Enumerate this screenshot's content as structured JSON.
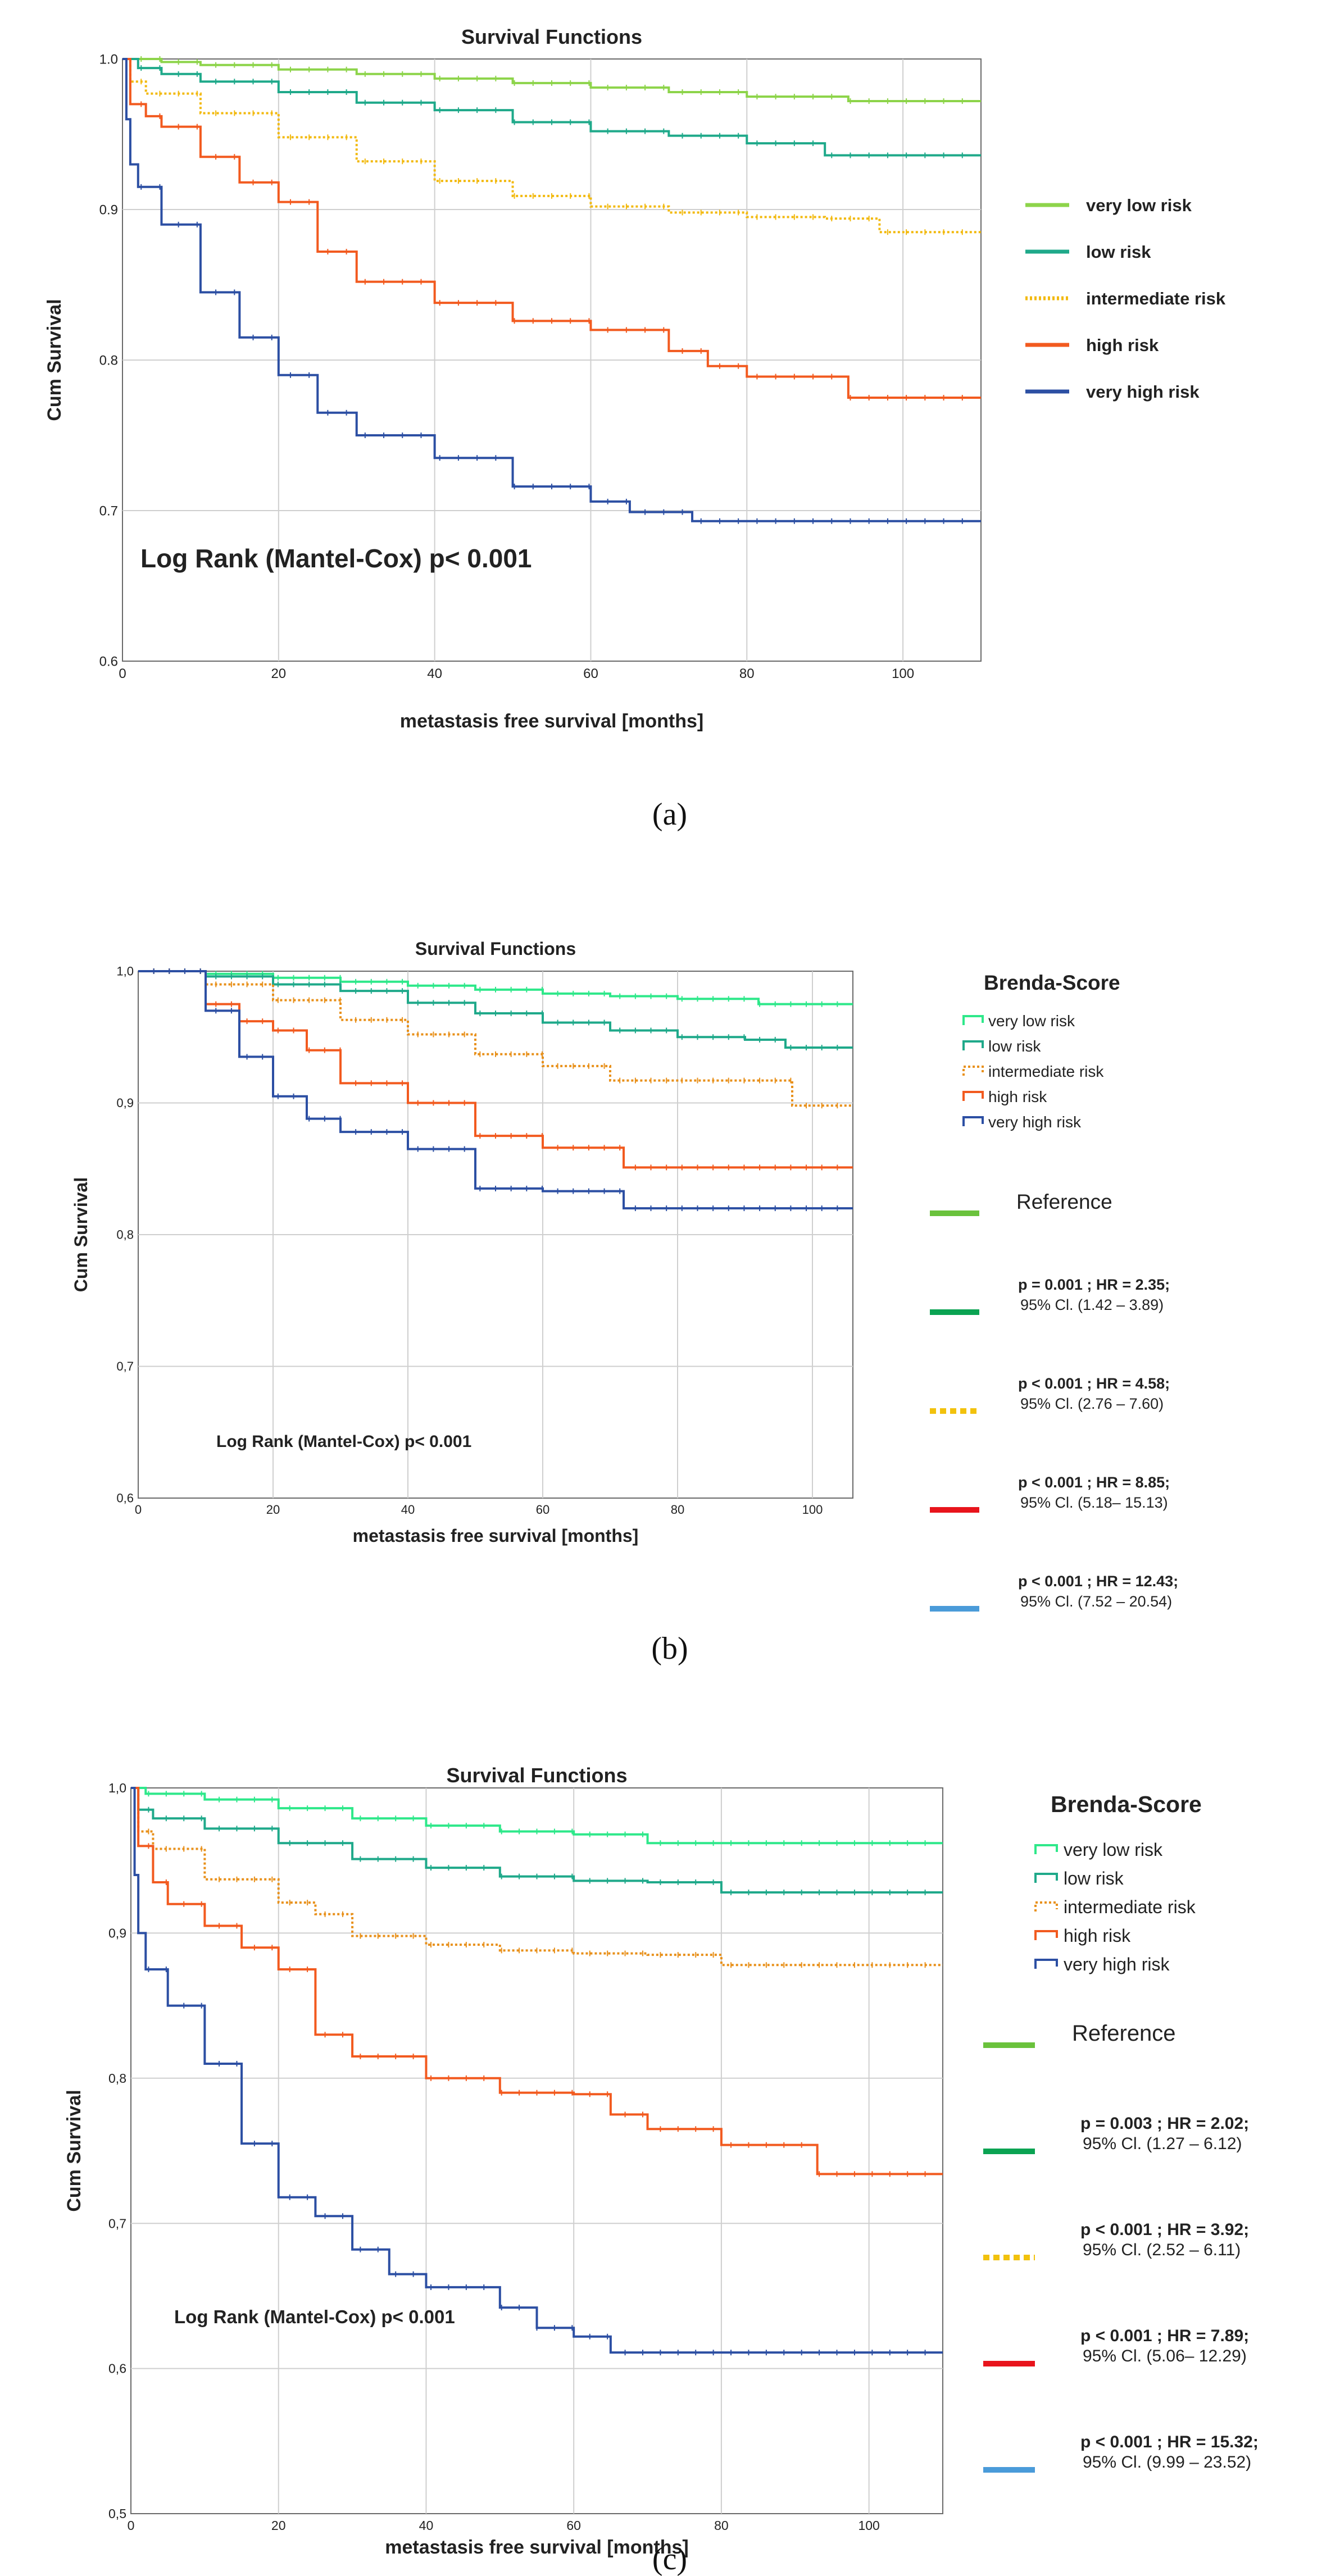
{
  "charts": [
    {
      "id": "a",
      "panel_label": "(a)",
      "title": "Survival Functions",
      "xlabel": "metastasis free survival [months]",
      "ylabel": "Cum Survival",
      "annotation": "Log Rank (Mantel-Cox) p< 0.001",
      "xticks": [
        "0",
        "20",
        "40",
        "60",
        "80",
        "100"
      ],
      "yticks": [
        "0.6",
        "0.7",
        "0.8",
        "0.9",
        "1.0"
      ],
      "legend_title": "",
      "reference_label": ""
    },
    {
      "id": "b",
      "panel_label": "(b)",
      "title": "Survival Functions",
      "xlabel": "metastasis free survival [months]",
      "ylabel": "Cum Survival",
      "annotation": "Log Rank (Mantel-Cox) p< 0.001",
      "xticks": [
        "0",
        "20",
        "40",
        "60",
        "80",
        "100"
      ],
      "yticks": [
        "0,6",
        "0,7",
        "0,8",
        "0,9",
        "1,0"
      ],
      "legend_title": "Brenda-Score",
      "reference_label": "Reference"
    },
    {
      "id": "c",
      "panel_label": "(c)",
      "title": "Survival Functions",
      "xlabel": "metastasis free survival [months]",
      "ylabel": "Cum Survival",
      "annotation": "Log Rank (Mantel-Cox) p< 0.001",
      "xticks": [
        "0",
        "20",
        "40",
        "60",
        "80",
        "100"
      ],
      "yticks": [
        "0,5",
        "0,6",
        "0,7",
        "0,8",
        "0,9",
        "1,0"
      ],
      "legend_title": "Brenda-Score",
      "reference_label": "Reference"
    }
  ],
  "chart_data": [
    {
      "type": "line",
      "title": "Survival Functions",
      "xlabel": "metastasis free survival [months]",
      "ylabel": "Cum Survival",
      "xlim": [
        0,
        110
      ],
      "ylim": [
        0.6,
        1.0
      ],
      "grid": true,
      "legend": "right",
      "series": [
        {
          "name": "very low risk",
          "color": "#8dd44a",
          "style": "solid",
          "x": [
            0,
            5,
            10,
            20,
            30,
            40,
            50,
            60,
            70,
            80,
            93,
            100,
            110
          ],
          "y": [
            1.0,
            0.998,
            0.996,
            0.993,
            0.99,
            0.987,
            0.984,
            0.981,
            0.978,
            0.975,
            0.972,
            0.972,
            0.972
          ]
        },
        {
          "name": "low risk",
          "color": "#1fa98a",
          "style": "solid",
          "x": [
            0,
            2,
            5,
            10,
            20,
            30,
            40,
            50,
            60,
            70,
            80,
            90,
            100,
            110
          ],
          "y": [
            1.0,
            0.994,
            0.99,
            0.985,
            0.978,
            0.971,
            0.966,
            0.958,
            0.952,
            0.949,
            0.944,
            0.936,
            0.936,
            0.936
          ]
        },
        {
          "name": "intermediate risk",
          "color": "#f2b90d",
          "style": "dotted",
          "x": [
            0,
            1,
            3,
            10,
            20,
            30,
            40,
            50,
            60,
            70,
            80,
            90,
            97,
            110
          ],
          "y": [
            1.0,
            0.985,
            0.977,
            0.964,
            0.948,
            0.932,
            0.919,
            0.909,
            0.902,
            0.898,
            0.895,
            0.894,
            0.885,
            0.885
          ]
        },
        {
          "name": "high risk",
          "color": "#f25a1f",
          "style": "solid",
          "x": [
            0,
            1,
            3,
            5,
            10,
            15,
            20,
            25,
            30,
            40,
            50,
            60,
            70,
            75,
            80,
            93,
            110
          ],
          "y": [
            1.0,
            0.97,
            0.962,
            0.955,
            0.935,
            0.918,
            0.905,
            0.872,
            0.852,
            0.838,
            0.826,
            0.82,
            0.806,
            0.796,
            0.789,
            0.775,
            0.775
          ]
        },
        {
          "name": "very high risk",
          "color": "#2c4fa3",
          "style": "solid",
          "x": [
            0,
            0.5,
            1,
            2,
            5,
            10,
            15,
            20,
            25,
            30,
            40,
            50,
            60,
            65,
            73,
            110
          ],
          "y": [
            1.0,
            0.96,
            0.93,
            0.915,
            0.89,
            0.845,
            0.815,
            0.79,
            0.765,
            0.75,
            0.735,
            0.716,
            0.706,
            0.699,
            0.693,
            0.693
          ]
        }
      ]
    },
    {
      "type": "line",
      "title": "Survival Functions",
      "xlabel": "metastasis free survival [months]",
      "ylabel": "Cum Survival",
      "xlim": [
        0,
        106
      ],
      "ylim": [
        0.6,
        1.0
      ],
      "grid": true,
      "legend": "right",
      "legend_title": "Brenda-Score",
      "series": [
        {
          "name": "very low risk",
          "color": "#2ee88a",
          "style": "solid",
          "x": [
            0,
            5,
            10,
            20,
            30,
            40,
            50,
            60,
            70,
            80,
            92,
            106
          ],
          "y": [
            1.0,
            1.0,
            0.998,
            0.995,
            0.992,
            0.989,
            0.986,
            0.983,
            0.981,
            0.979,
            0.975,
            0.975
          ]
        },
        {
          "name": "low risk",
          "color": "#1fa98a",
          "style": "solid",
          "x": [
            0,
            5,
            10,
            20,
            30,
            40,
            50,
            60,
            70,
            80,
            90,
            96,
            106
          ],
          "y": [
            1.0,
            1.0,
            0.996,
            0.99,
            0.985,
            0.976,
            0.968,
            0.961,
            0.955,
            0.95,
            0.948,
            0.942,
            0.942
          ]
        },
        {
          "name": "intermediate risk",
          "color": "#e8901a",
          "style": "dotted",
          "x": [
            0,
            5,
            10,
            20,
            30,
            40,
            50,
            60,
            70,
            80,
            97,
            106
          ],
          "y": [
            1.0,
            1.0,
            0.99,
            0.978,
            0.963,
            0.952,
            0.937,
            0.928,
            0.917,
            0.917,
            0.898,
            0.898
          ]
        },
        {
          "name": "high risk",
          "color": "#f25a1f",
          "style": "solid",
          "x": [
            0,
            5,
            10,
            15,
            20,
            25,
            30,
            40,
            50,
            60,
            72,
            106
          ],
          "y": [
            1.0,
            1.0,
            0.975,
            0.962,
            0.955,
            0.94,
            0.915,
            0.9,
            0.875,
            0.866,
            0.851,
            0.851
          ]
        },
        {
          "name": "very high risk",
          "color": "#2c4fa3",
          "style": "solid",
          "x": [
            0,
            5,
            10,
            15,
            20,
            25,
            30,
            40,
            50,
            60,
            72,
            106
          ],
          "y": [
            1.0,
            1.0,
            0.97,
            0.935,
            0.905,
            0.888,
            0.878,
            0.865,
            0.835,
            0.833,
            0.82,
            0.82
          ]
        }
      ],
      "hazard_ratios": [
        {
          "color": "#6ac23c",
          "style": "solid",
          "line1": "Reference",
          "line2": ""
        },
        {
          "color": "#0aa352",
          "style": "solid",
          "line1": "p = 0.001 ; HR = 2.35;",
          "line2": "95% Cl. (1.42 – 3.89)"
        },
        {
          "color": "#f2c20d",
          "style": "dashed",
          "line1": "p < 0.001 ; HR = 4.58;",
          "line2": "95% Cl. (2.76 – 7.60)"
        },
        {
          "color": "#e8141c",
          "style": "solid",
          "line1": "p < 0.001 ; HR = 8.85;",
          "line2": "95% Cl. (5.18– 15.13)"
        },
        {
          "color": "#4a9bd9",
          "style": "solid",
          "line1": "p < 0.001 ; HR = 12.43;",
          "line2": "95% Cl. (7.52 – 20.54)"
        }
      ]
    },
    {
      "type": "line",
      "title": "Survival Functions",
      "xlabel": "metastasis free survival [months]",
      "ylabel": "Cum Survival",
      "xlim": [
        0,
        110
      ],
      "ylim": [
        0.5,
        1.0
      ],
      "grid": true,
      "legend": "right",
      "legend_title": "Brenda-Score",
      "series": [
        {
          "name": "very low risk",
          "color": "#2ee88a",
          "style": "solid",
          "x": [
            0,
            2,
            10,
            20,
            30,
            40,
            50,
            60,
            70,
            80,
            90,
            110
          ],
          "y": [
            1.0,
            0.996,
            0.992,
            0.986,
            0.979,
            0.974,
            0.97,
            0.968,
            0.962,
            0.962,
            0.962,
            0.962
          ]
        },
        {
          "name": "low risk",
          "color": "#1fa98a",
          "style": "solid",
          "x": [
            0,
            1,
            3,
            10,
            20,
            30,
            40,
            50,
            60,
            70,
            80,
            110
          ],
          "y": [
            1.0,
            0.985,
            0.979,
            0.972,
            0.962,
            0.951,
            0.945,
            0.939,
            0.936,
            0.935,
            0.928,
            0.928
          ]
        },
        {
          "name": "intermediate risk",
          "color": "#e8901a",
          "style": "dotted",
          "x": [
            0,
            1,
            3,
            10,
            20,
            25,
            30,
            40,
            50,
            60,
            70,
            80,
            110
          ],
          "y": [
            1.0,
            0.97,
            0.958,
            0.937,
            0.921,
            0.913,
            0.898,
            0.892,
            0.888,
            0.886,
            0.885,
            0.878,
            0.878
          ]
        },
        {
          "name": "high risk",
          "color": "#f25a1f",
          "style": "solid",
          "x": [
            0,
            1,
            3,
            5,
            10,
            15,
            20,
            25,
            30,
            40,
            50,
            60,
            65,
            70,
            80,
            93,
            110
          ],
          "y": [
            1.0,
            0.96,
            0.935,
            0.92,
            0.905,
            0.89,
            0.875,
            0.83,
            0.815,
            0.8,
            0.79,
            0.789,
            0.775,
            0.765,
            0.754,
            0.734,
            0.734
          ]
        },
        {
          "name": "very high risk",
          "color": "#2c4fa3",
          "style": "solid",
          "x": [
            0,
            0.5,
            1,
            2,
            5,
            10,
            15,
            20,
            25,
            30,
            35,
            40,
            50,
            55,
            60,
            65,
            110
          ],
          "y": [
            1.0,
            0.94,
            0.9,
            0.875,
            0.85,
            0.81,
            0.755,
            0.718,
            0.705,
            0.682,
            0.665,
            0.656,
            0.642,
            0.628,
            0.622,
            0.611,
            0.611
          ]
        }
      ],
      "hazard_ratios": [
        {
          "color": "#6ac23c",
          "style": "solid",
          "line1": "Reference",
          "line2": ""
        },
        {
          "color": "#0aa352",
          "style": "solid",
          "line1": "p = 0.003 ; HR = 2.02;",
          "line2": "95% Cl. (1.27 – 6.12)"
        },
        {
          "color": "#f2c20d",
          "style": "dashed",
          "line1": "p < 0.001 ; HR = 3.92;",
          "line2": "95% Cl. (2.52 – 6.11)"
        },
        {
          "color": "#e8141c",
          "style": "solid",
          "line1": "p < 0.001 ; HR = 7.89;",
          "line2": "95% Cl. (5.06– 12.29)"
        },
        {
          "color": "#4a9bd9",
          "style": "solid",
          "line1": "p < 0.001 ; HR = 15.32;",
          "line2": "95% Cl. (9.99 – 23.52)"
        }
      ]
    }
  ]
}
